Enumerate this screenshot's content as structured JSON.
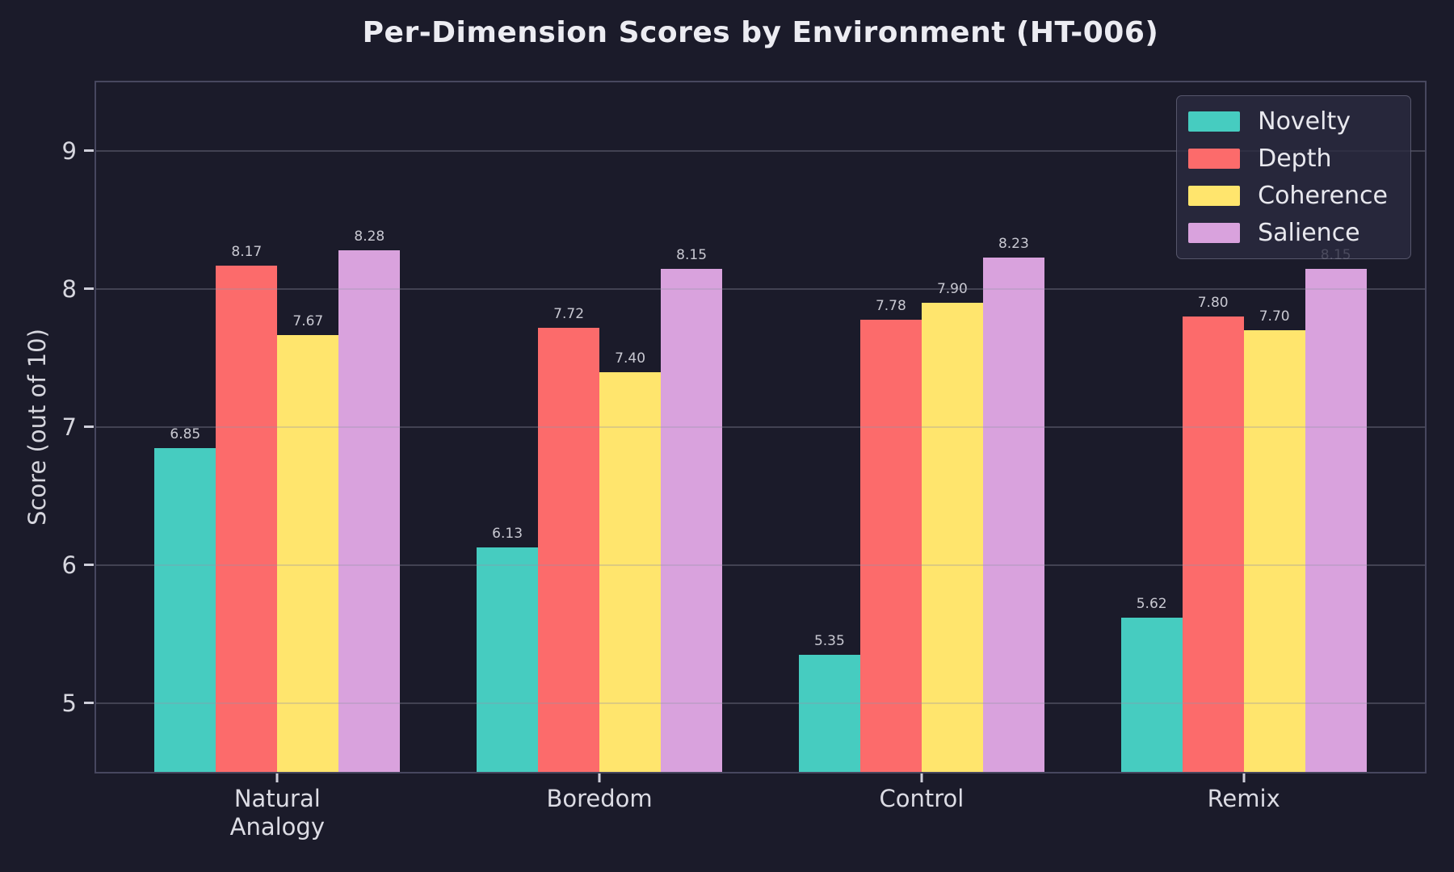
{
  "page": {
    "background_color": "#1b1b2a"
  },
  "chart_data": {
    "type": "bar",
    "title": "Per-Dimension Scores by Environment (HT-006)",
    "xlabel": "",
    "ylabel": "Score (out of 10)",
    "categories": [
      "Natural\nAnalogy",
      "Boredom",
      "Control",
      "Remix"
    ],
    "series": [
      {
        "name": "Novelty",
        "color": "#46CCC0",
        "values": [
          6.85,
          6.13,
          5.35,
          5.62
        ]
      },
      {
        "name": "Depth",
        "color": "#FC6B6B",
        "values": [
          8.17,
          7.72,
          7.78,
          7.8
        ]
      },
      {
        "name": "Coherence",
        "color": "#FFE56D",
        "values": [
          7.67,
          7.4,
          7.9,
          7.7
        ]
      },
      {
        "name": "Salience",
        "color": "#D9A2DD",
        "values": [
          8.28,
          8.15,
          8.23,
          8.15
        ]
      }
    ],
    "value_labels": [
      [
        "6.85",
        "6.13",
        "5.35",
        "5.62"
      ],
      [
        "8.17",
        "7.72",
        "7.78",
        "7.80"
      ],
      [
        "7.67",
        "7.40",
        "7.90",
        "7.70"
      ],
      [
        "8.28",
        "8.15",
        "8.23",
        "8.15"
      ]
    ],
    "yticks": [
      5,
      6,
      7,
      8,
      9
    ],
    "ylim": [
      4.5,
      9.5
    ],
    "grid": true,
    "grid_on_top": true,
    "legend": {
      "position": "upper right",
      "entries": [
        "Novelty",
        "Depth",
        "Coherence",
        "Salience"
      ]
    }
  }
}
